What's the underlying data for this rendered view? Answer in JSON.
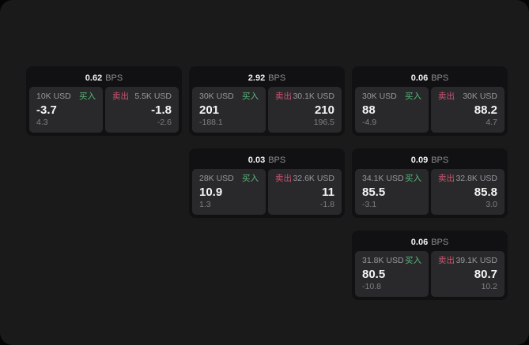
{
  "labels": {
    "bps": "BPS",
    "buy": "买入",
    "sell": "卖出"
  },
  "colors": {
    "buy": "#58b97c",
    "sell": "#cd5372",
    "board_background": "#1a1a1b",
    "card_background": "#111113",
    "tile_background": "#29292b",
    "primary_text": "#f4f4f5",
    "muted_text": "#8e8e93"
  },
  "cards": [
    {
      "row": 1,
      "col": 1,
      "bps": "0.62",
      "buy": {
        "amount": "10K USD",
        "value": "-3.7",
        "sub": "4.3"
      },
      "sell": {
        "amount": "5.5K USD",
        "value": "-1.8",
        "sub": "-2.6"
      }
    },
    {
      "row": 1,
      "col": 2,
      "bps": "2.92",
      "buy": {
        "amount": "30K USD",
        "value": "201",
        "sub": "-188.1"
      },
      "sell": {
        "amount": "30.1K USD",
        "value": "210",
        "sub": "196.5"
      }
    },
    {
      "row": 1,
      "col": 3,
      "bps": "0.06",
      "buy": {
        "amount": "30K USD",
        "value": "88",
        "sub": "-4.9"
      },
      "sell": {
        "amount": "30K USD",
        "value": "88.2",
        "sub": "4.7"
      }
    },
    {
      "row": 2,
      "col": 2,
      "bps": "0.03",
      "buy": {
        "amount": "28K USD",
        "value": "10.9",
        "sub": "1.3"
      },
      "sell": {
        "amount": "32.6K USD",
        "value": "11",
        "sub": "-1.8"
      }
    },
    {
      "row": 2,
      "col": 3,
      "bps": "0.09",
      "buy": {
        "amount": "34.1K USD",
        "value": "85.5",
        "sub": "-3.1"
      },
      "sell": {
        "amount": "32.8K USD",
        "value": "85.8",
        "sub": "3.0"
      }
    },
    {
      "row": 3,
      "col": 3,
      "bps": "0.06",
      "buy": {
        "amount": "31.8K USD",
        "value": "80.5",
        "sub": "-10.8"
      },
      "sell": {
        "amount": "39.1K USD",
        "value": "80.7",
        "sub": "10.2"
      }
    }
  ]
}
